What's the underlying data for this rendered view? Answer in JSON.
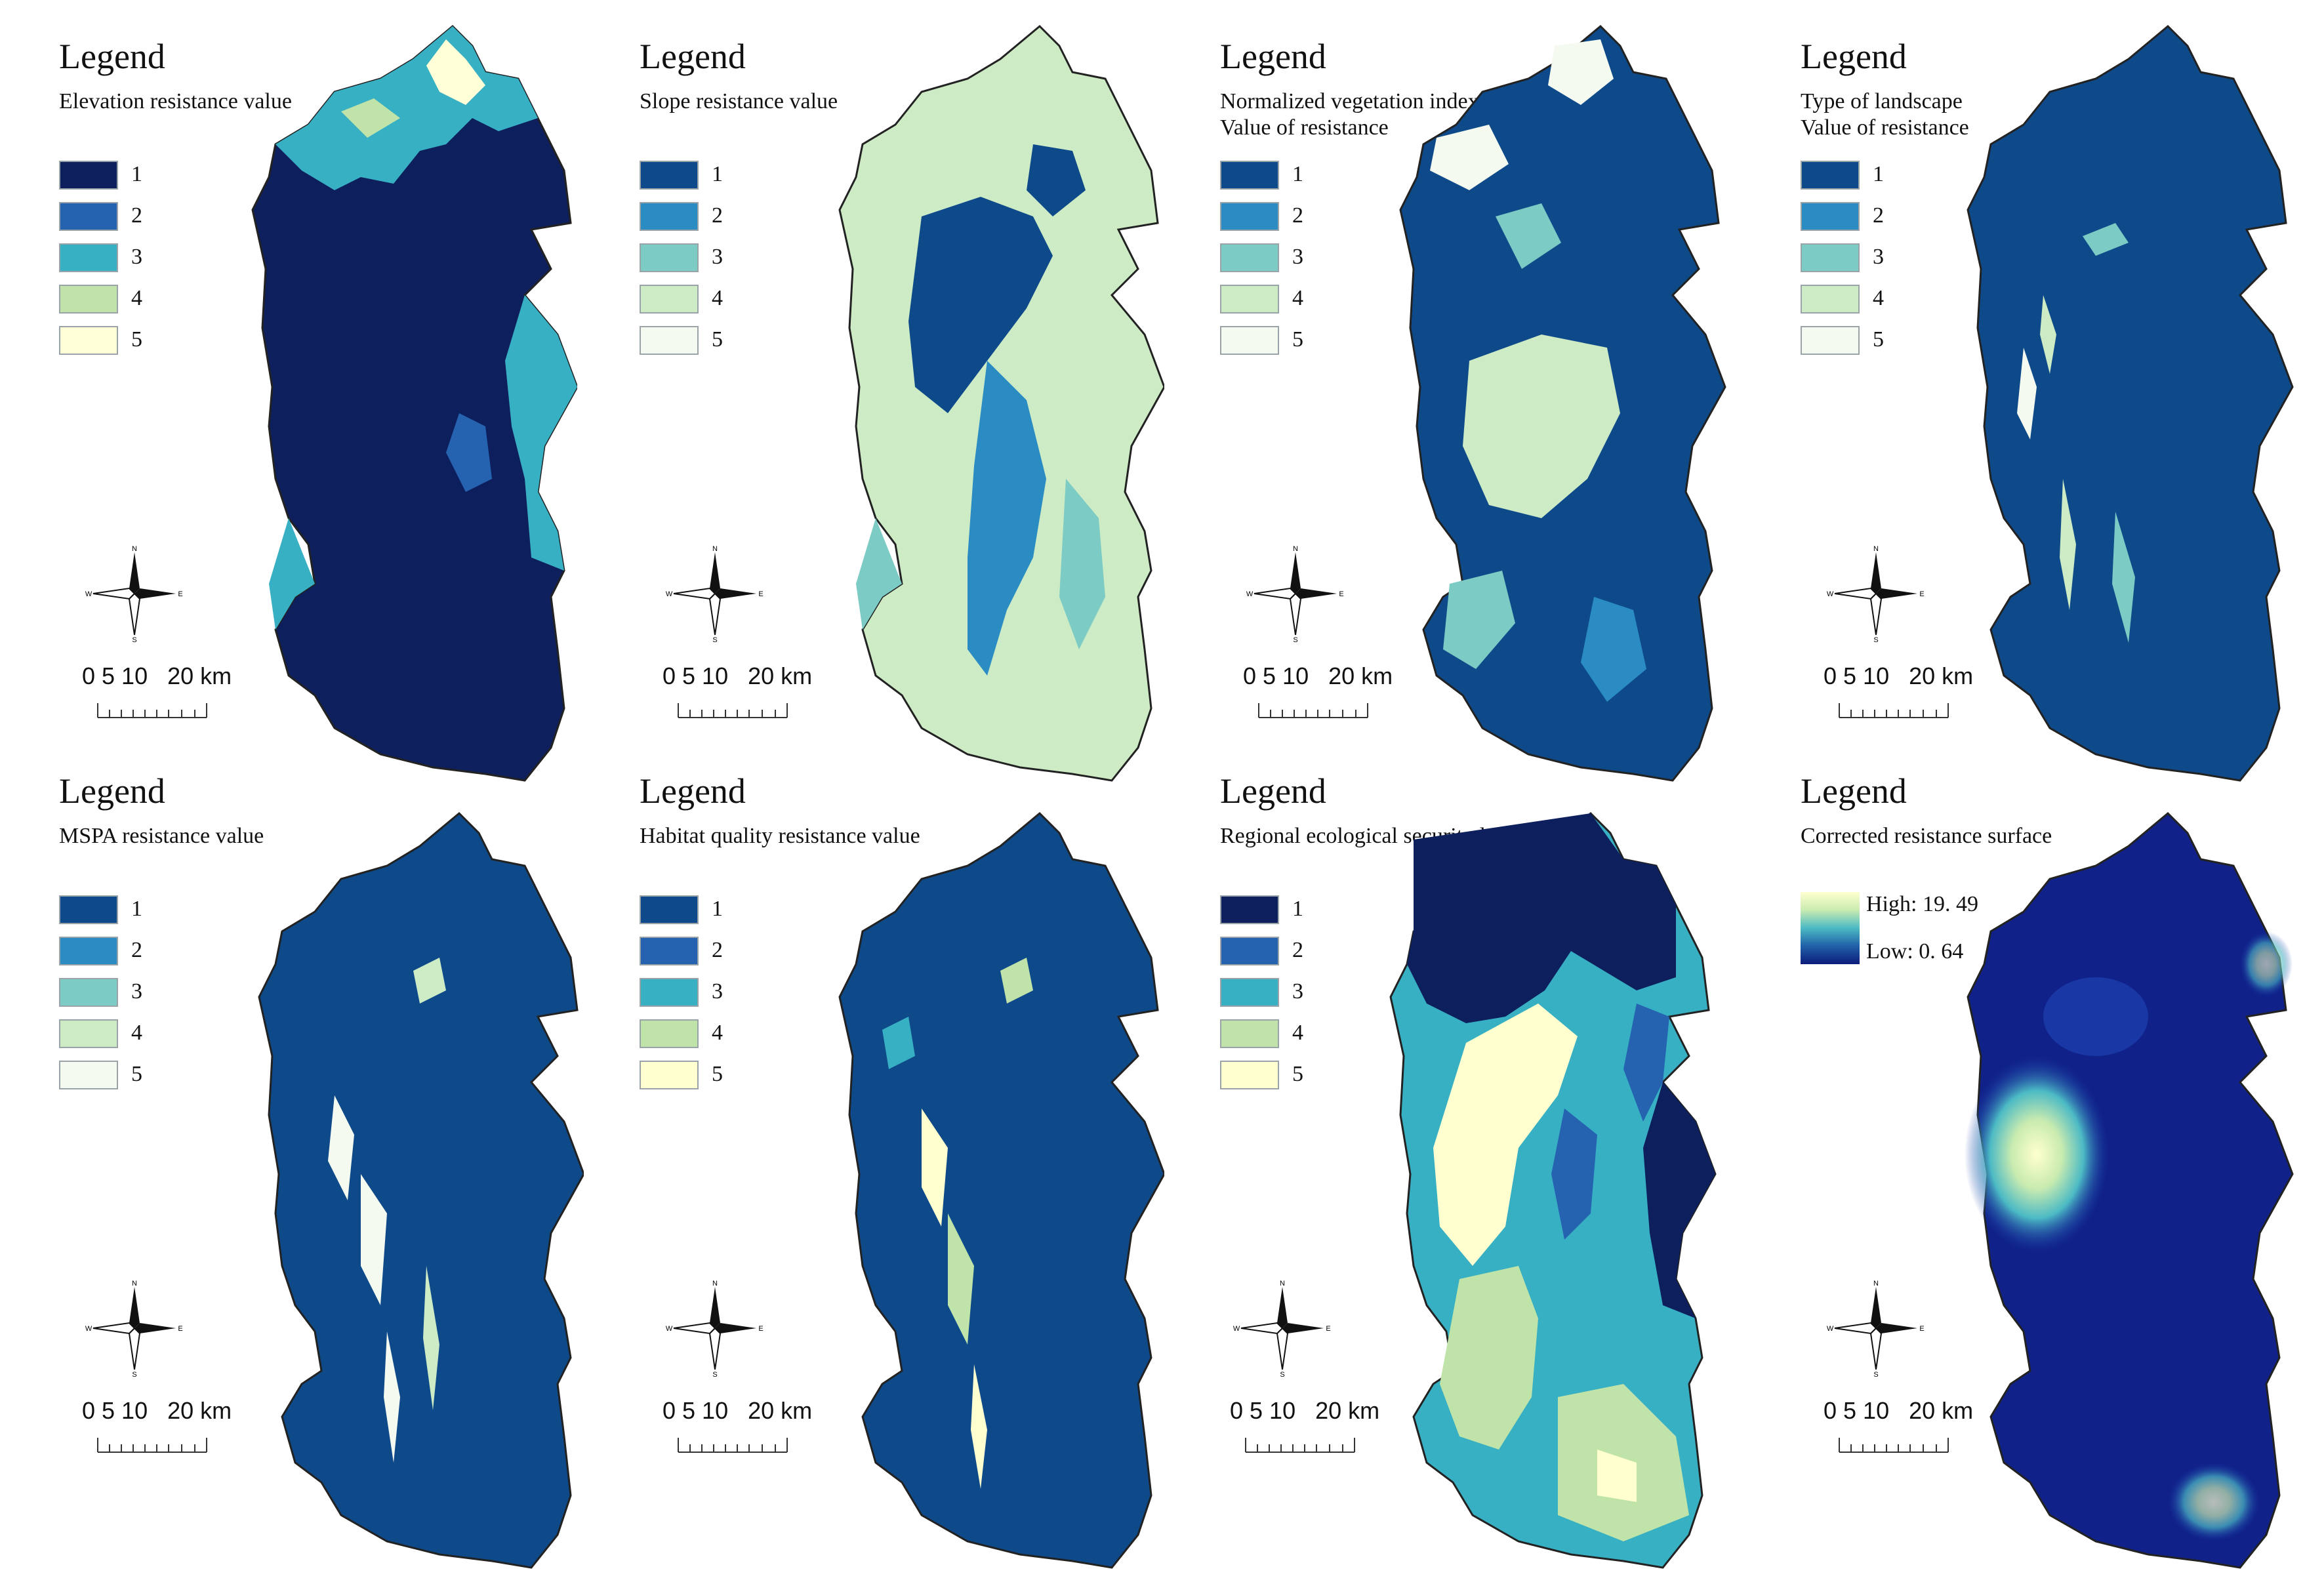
{
  "panels": [
    {
      "legend_title": "Legend",
      "subtitle": "Elevation resistance value",
      "legend_type": "classes",
      "classes": [
        "1",
        "2",
        "3",
        "4",
        "5"
      ],
      "colors": [
        "#0d1f5c",
        "#2563b0",
        "#38b0c4",
        "#bfe3a8",
        "#ffffd8"
      ],
      "compass": {
        "n": "N",
        "s": "S",
        "e": "E",
        "w": "W"
      },
      "scale": {
        "text": "0 5 10   20 km"
      }
    },
    {
      "legend_title": "Legend",
      "subtitle": "Slope resistance value",
      "legend_type": "classes",
      "classes": [
        "1",
        "2",
        "3",
        "4",
        "5"
      ],
      "colors": [
        "#0e4a8a",
        "#2b8cc4",
        "#7ccbc4",
        "#cdebc4",
        "#f5faf0"
      ],
      "compass": {
        "n": "N",
        "s": "S",
        "e": "E",
        "w": "W"
      },
      "scale": {
        "text": "0 5 10   20 km"
      }
    },
    {
      "legend_title": "Legend",
      "subtitle": "Normalized vegetation index\nValue of resistance",
      "legend_type": "classes",
      "classes": [
        "1",
        "2",
        "3",
        "4",
        "5"
      ],
      "colors": [
        "#0e4a8a",
        "#2b8cc4",
        "#7ccbc4",
        "#cdebc4",
        "#f5faf0"
      ],
      "compass": {
        "n": "N",
        "s": "S",
        "e": "E",
        "w": "W"
      },
      "scale": {
        "text": "0 5 10   20 km"
      }
    },
    {
      "legend_title": "Legend",
      "subtitle": "Type of landscape\nValue of resistance",
      "legend_type": "classes",
      "classes": [
        "1",
        "2",
        "3",
        "4",
        "5"
      ],
      "colors": [
        "#0e4a8a",
        "#2b8cc4",
        "#7ccbc4",
        "#cdebc4",
        "#f5faf0"
      ],
      "compass": {
        "n": "N",
        "s": "S",
        "e": "E",
        "w": "W"
      },
      "scale": {
        "text": "0 5 10   20 km"
      }
    },
    {
      "legend_title": "Legend",
      "subtitle": "MSPA resistance value",
      "legend_type": "classes",
      "classes": [
        "1",
        "2",
        "3",
        "4",
        "5"
      ],
      "colors": [
        "#0e4a8a",
        "#2b8cc4",
        "#7ccbc4",
        "#cdebc4",
        "#f5faf0"
      ],
      "compass": {
        "n": "N",
        "s": "S",
        "e": "E",
        "w": "W"
      },
      "scale": {
        "text": "0 5 10   20 km"
      }
    },
    {
      "legend_title": "Legend",
      "subtitle": "Habitat quality resistance value",
      "legend_type": "classes",
      "classes": [
        "1",
        "2",
        "3",
        "4",
        "5"
      ],
      "colors": [
        "#0e4a8a",
        "#2563b0",
        "#38b0c4",
        "#bfe3a8",
        "#ffffd0"
      ],
      "compass": {
        "n": "N",
        "s": "S",
        "e": "E",
        "w": "W"
      },
      "scale": {
        "text": "0 5 10   20 km"
      }
    },
    {
      "legend_title": "Legend",
      "subtitle": "Regional ecological security level",
      "legend_type": "classes",
      "classes": [
        "1",
        "2",
        "3",
        "4",
        "5"
      ],
      "colors": [
        "#0d1f5c",
        "#2563b0",
        "#38b0c4",
        "#bfe3a8",
        "#ffffd0"
      ],
      "compass": {
        "n": "N",
        "s": "S",
        "e": "E",
        "w": "W"
      },
      "scale": {
        "text": "0 5 10   20 km"
      }
    },
    {
      "legend_title": "Legend",
      "subtitle": "Corrected resistance surface",
      "legend_type": "gradient",
      "high_label": "High: 19. 49",
      "low_label": "Low: 0. 64",
      "colors": [
        "#ffffd0",
        "#0c1c7a"
      ],
      "compass": {
        "n": "N",
        "s": "S",
        "e": "E",
        "w": "W"
      },
      "scale": {
        "text": "0 5 10   20 km"
      }
    }
  ]
}
